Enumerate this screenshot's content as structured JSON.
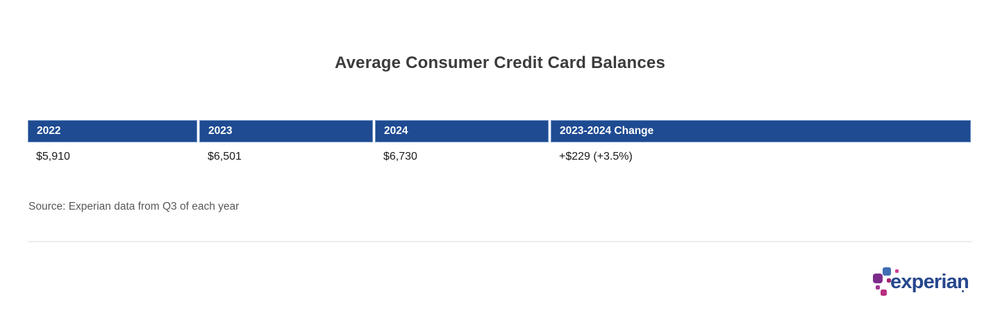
{
  "title": "Average Consumer Credit Card Balances",
  "table": {
    "headers": [
      "2022",
      "2023",
      "2024",
      "2023-2024 Change"
    ],
    "rows": [
      [
        "$5,910",
        "$6,501",
        "$6,730",
        "+$229 (+3.5%)"
      ]
    ]
  },
  "source_note": "Source: Experian data from Q3 of each year",
  "logo": {
    "brand": "experian",
    "trademark": "."
  },
  "colors": {
    "header_bg": "#1e4b91",
    "header_text": "#ffffff",
    "title_text": "#3b3b3b",
    "body_text": "#1a1a1a",
    "source_text": "#585858",
    "divider": "#ececec",
    "logo_wordmark": "#26478d",
    "logo_blue": "#406eb3",
    "logo_purple": "#7d2b8b",
    "logo_magenta": "#b72f7f",
    "logo_pink": "#cf3f8e",
    "logo_dark_magenta": "#a32672",
    "logo_plum": "#a23494"
  },
  "chart_data": {
    "type": "table",
    "title": "Average Consumer Credit Card Balances",
    "columns": [
      "2022",
      "2023",
      "2024",
      "2023-2024 Change"
    ],
    "rows": [
      [
        "$5,910",
        "$6,501",
        "$6,730",
        "+$229 (+3.5%)"
      ]
    ],
    "values_numeric": {
      "2022": 5910,
      "2023": 6501,
      "2024": 6730,
      "change_2023_2024_usd": 229,
      "change_2023_2024_pct": 3.5
    },
    "source": "Source: Experian data from Q3 of each year",
    "legend_position": "none",
    "grid": false
  }
}
